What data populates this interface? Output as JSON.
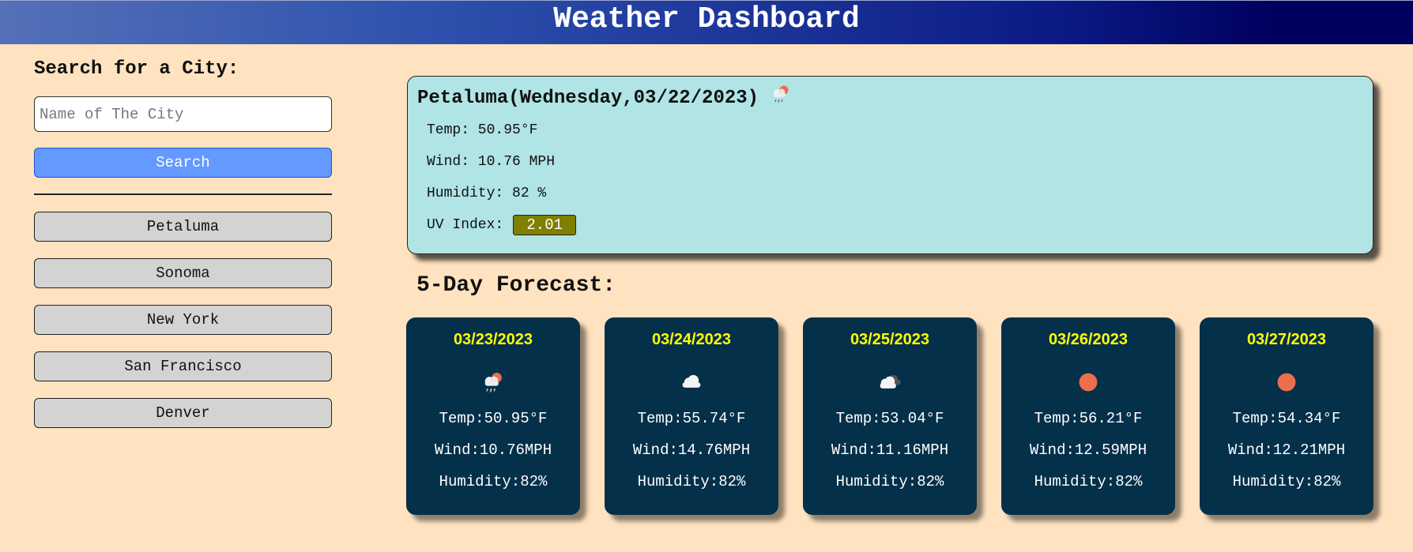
{
  "header": {
    "title": "Weather Dashboard"
  },
  "sidebar": {
    "heading": "Search for a City:",
    "search_placeholder": "Name of The City",
    "search_value": "",
    "search_button": "Search",
    "history": [
      "Petaluma",
      "Sonoma",
      "New York",
      "San Francisco",
      "Denver"
    ]
  },
  "current": {
    "title": "Petaluma(Wednesday,03/22/2023)",
    "icon": "rain-sun-icon",
    "temp": "Temp: 50.95°F",
    "wind": "Wind: 10.76 MPH",
    "humidity": "Humidity: 82 %",
    "uv_label": "UV Index:",
    "uv_value": "2.01",
    "uv_color": "#7f7f00"
  },
  "forecast": {
    "title": "5-Day Forecast:",
    "days": [
      {
        "date": "03/23/2023",
        "icon": "rain-sun-icon",
        "temp": "Temp:50.95°F",
        "wind": "Wind:10.76MPH",
        "humidity": "Humidity:82%"
      },
      {
        "date": "03/24/2023",
        "icon": "cloud-icon",
        "temp": "Temp:55.74°F",
        "wind": "Wind:14.76MPH",
        "humidity": "Humidity:82%"
      },
      {
        "date": "03/25/2023",
        "icon": "broken-clouds-icon",
        "temp": "Temp:53.04°F",
        "wind": "Wind:11.16MPH",
        "humidity": "Humidity:82%"
      },
      {
        "date": "03/26/2023",
        "icon": "sun-icon",
        "temp": "Temp:56.21°F",
        "wind": "Wind:12.59MPH",
        "humidity": "Humidity:82%"
      },
      {
        "date": "03/27/2023",
        "icon": "sun-icon",
        "temp": "Temp:54.34°F",
        "wind": "Wind:12.21MPH",
        "humidity": "Humidity:82%"
      }
    ]
  },
  "colors": {
    "background": "#ffe3c0",
    "current_panel": "#b0e4e5",
    "card": "#04304a",
    "date_text": "#ffff00",
    "search_button": "#6499ff",
    "history_button": "#d3d3d3"
  }
}
